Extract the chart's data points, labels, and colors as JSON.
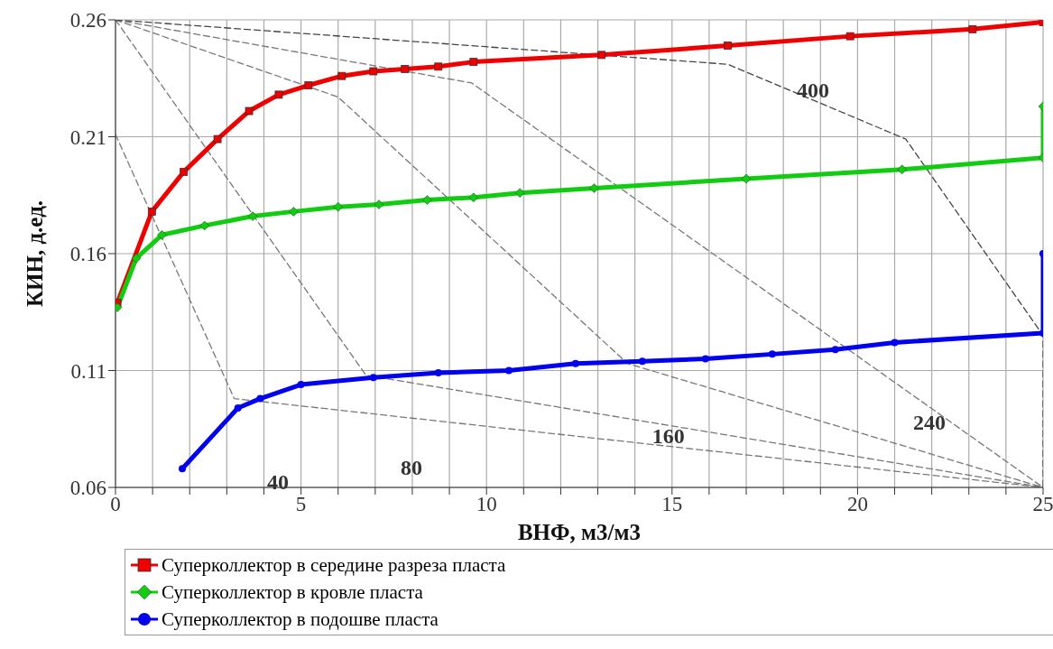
{
  "chart_data": {
    "type": "line",
    "xlabel": "ВНФ, м3/м3",
    "ylabel": "КИН, д.ед.",
    "xlim": [
      0,
      25
    ],
    "ylim": [
      0.06,
      0.26
    ],
    "xticks": [
      0,
      {
        "value": 1,
        "label": null
      },
      {
        "value": 2,
        "label": null
      },
      {
        "value": 3,
        "label": null
      },
      {
        "value": 4,
        "label": null
      },
      5,
      {
        "value": 6,
        "label": null
      },
      {
        "value": 7,
        "label": null
      },
      {
        "value": 8,
        "label": null
      },
      {
        "value": 9,
        "label": null
      },
      10,
      {
        "value": 11,
        "label": null
      },
      {
        "value": 12,
        "label": null
      },
      {
        "value": 13,
        "label": null
      },
      {
        "value": 14,
        "label": null
      },
      15,
      {
        "value": 16,
        "label": null
      },
      {
        "value": 17,
        "label": null
      },
      {
        "value": 18,
        "label": null
      },
      {
        "value": 19,
        "label": null
      },
      20,
      {
        "value": 21,
        "label": null
      },
      {
        "value": 22,
        "label": null
      },
      {
        "value": 23,
        "label": null
      },
      {
        "value": 24,
        "label": null
      },
      25
    ],
    "yticks": [
      0.06,
      0.11,
      0.16,
      0.21,
      0.26
    ],
    "grid": true,
    "legend": "bottom",
    "series": [
      {
        "line_style": "dashed",
        "marker": "none",
        "color": "#777777",
        "x": [
          0,
          3.2,
          25
        ],
        "values": [
          0.211,
          0.098,
          0.06
        ]
      },
      {
        "line_style": "dashed",
        "marker": "none",
        "color": "#777777",
        "x": [
          0,
          6.75,
          25
        ],
        "values": [
          0.26,
          0.108,
          0.06
        ]
      },
      {
        "line_style": "dashed",
        "marker": "none",
        "color": "#777777",
        "x": [
          0,
          6,
          13.8,
          25
        ],
        "values": [
          0.26,
          0.227,
          0.113,
          0.06
        ]
      },
      {
        "line_style": "dashed",
        "marker": "none",
        "color": "#777777",
        "x": [
          0,
          9.6,
          25
        ],
        "values": [
          0.26,
          0.233,
          0.06
        ]
      },
      {
        "line_style": "dashed",
        "marker": "none",
        "color": "#444444",
        "x": [
          0,
          16.5,
          21.3,
          25,
          25
        ],
        "values": [
          0.26,
          0.241,
          0.209,
          0.125,
          0.06
        ]
      },
      {
        "name": "Суперколлектор в середине разреза пласта",
        "color": "#ee0000",
        "marker": "square",
        "line_style": "solid",
        "x": [
          0.05,
          0.98,
          1.84,
          2.75,
          3.6,
          4.4,
          5.2,
          6.1,
          6.95,
          7.8,
          8.7,
          9.65,
          13.1,
          16.5,
          19.8,
          23.1,
          25
        ],
        "values": [
          0.139,
          0.178,
          0.195,
          0.209,
          0.221,
          0.228,
          0.232,
          0.236,
          0.238,
          0.239,
          0.24,
          0.242,
          0.245,
          0.249,
          0.253,
          0.256,
          0.259
        ]
      },
      {
        "name": "Суперколлектор в кровле пласта",
        "color": "#11cc11",
        "marker": "diamond",
        "line_style": "solid",
        "x": [
          0.05,
          0.56,
          1.25,
          2.4,
          3.7,
          4.8,
          6,
          7.1,
          8.4,
          9.65,
          10.9,
          12.9,
          17,
          21.2,
          25,
          25
        ],
        "values": [
          0.137,
          0.158,
          0.168,
          0.172,
          0.176,
          0.178,
          0.18,
          0.181,
          0.183,
          0.184,
          0.186,
          0.188,
          0.192,
          0.196,
          0.201,
          0.223
        ]
      },
      {
        "name": "Суперколлектор в подошве пласта",
        "color": "#0000ee",
        "marker": "circle",
        "line_style": "solid",
        "x": [
          1.8,
          3.3,
          3.9,
          5,
          6.95,
          8.7,
          10.6,
          12.4,
          14.2,
          15.9,
          17.7,
          19.4,
          21,
          25,
          25
        ],
        "values": [
          0.068,
          0.094,
          0.098,
          0.104,
          0.107,
          0.109,
          0.11,
          0.113,
          0.114,
          0.115,
          0.117,
          0.119,
          0.122,
          0.126,
          0.16
        ]
      }
    ],
    "annotations": [
      "40",
      "80",
      {
        "text": "160",
        "x": 14.9,
        "y": 0.078
      },
      "240",
      {
        "text": "400",
        "x": 18.8,
        "y": 0.226
      }
    ]
  }
}
